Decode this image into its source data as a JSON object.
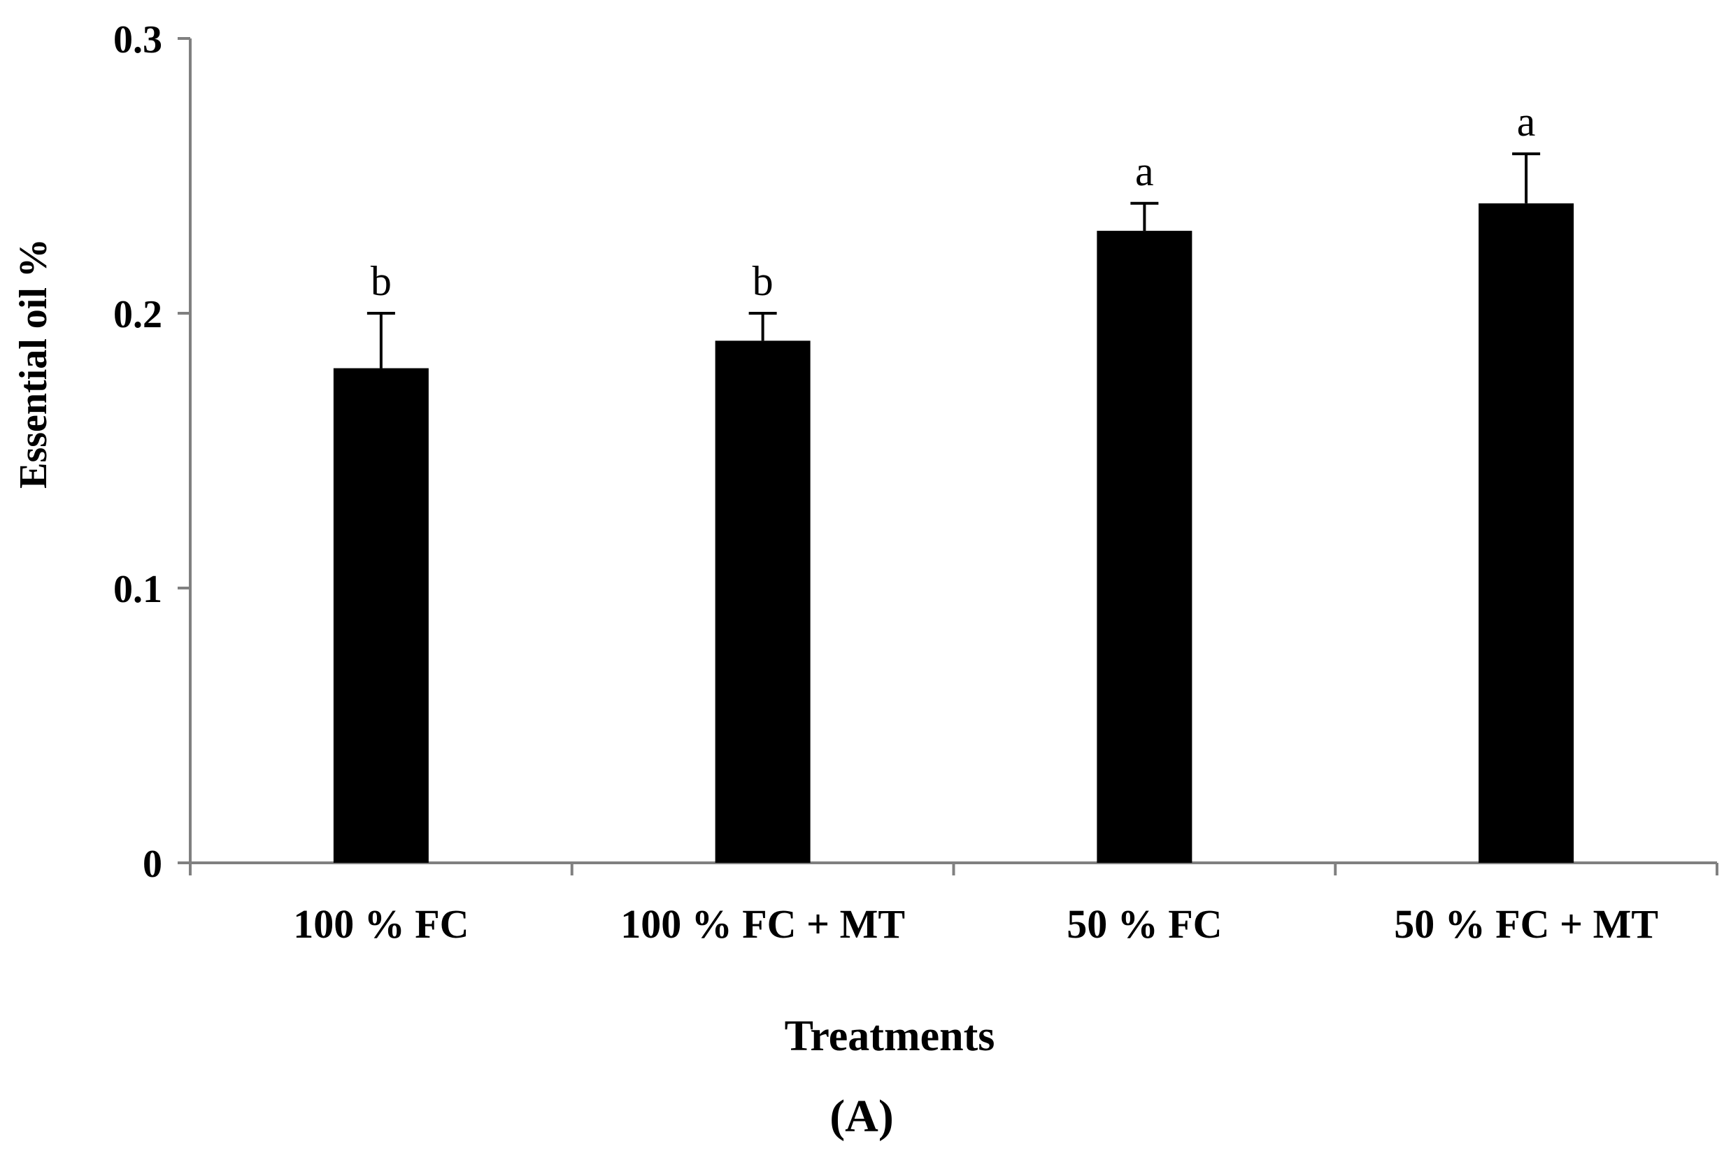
{
  "chart_data": {
    "type": "bar",
    "title": "",
    "xlabel": "Treatments",
    "ylabel": "Essential oil %",
    "panel_label": "(A)",
    "categories": [
      "100 % FC",
      "100 % FC + MT",
      "50 % FC",
      "50 % FC + MT"
    ],
    "values": [
      0.18,
      0.19,
      0.23,
      0.24
    ],
    "errors": [
      0.02,
      0.01,
      0.01,
      0.018
    ],
    "significance_letters": [
      "b",
      "b",
      "a",
      "a"
    ],
    "ylim": [
      0,
      0.3
    ],
    "yticks": [
      0,
      0.1,
      0.2,
      0.3
    ],
    "ytick_labels": [
      "0",
      "0.1",
      "0.2",
      "0.3"
    ],
    "grid": false,
    "legend": "none",
    "bar_color": "#000000",
    "axis_color": "#808080"
  }
}
